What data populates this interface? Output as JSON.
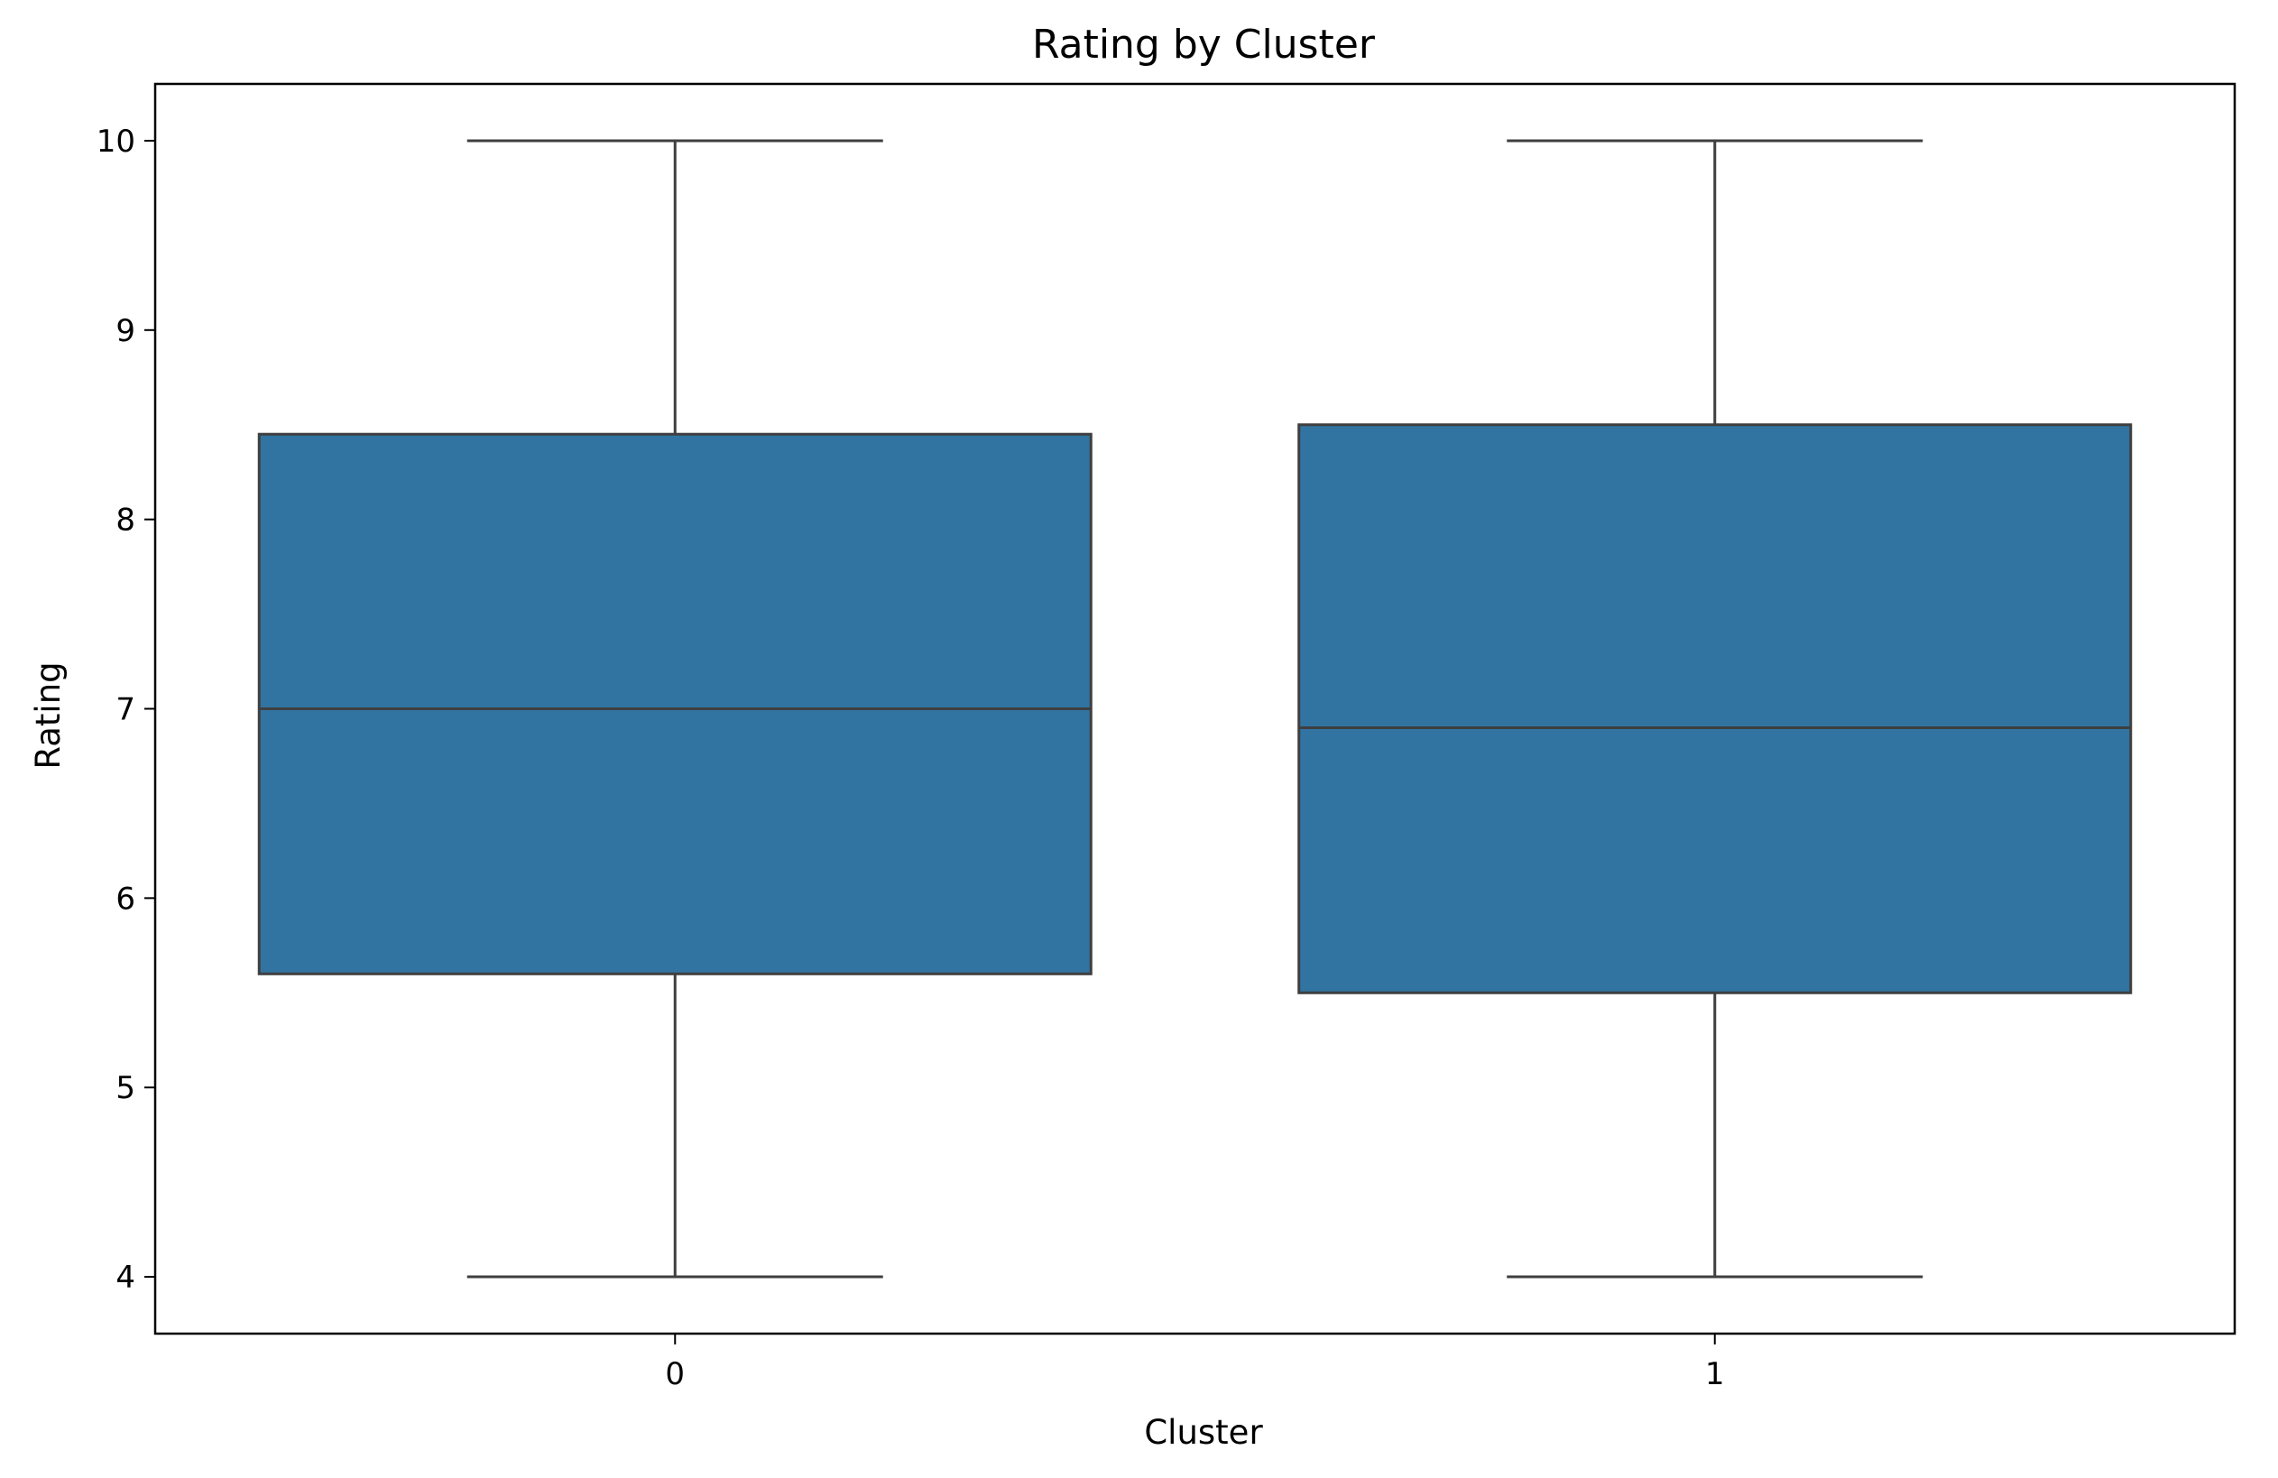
{
  "chart_data": {
    "type": "box",
    "title": "Rating by Cluster",
    "xlabel": "Cluster",
    "ylabel": "Rating",
    "categories": [
      "0",
      "1"
    ],
    "boxes": [
      {
        "category": "0",
        "whisker_low": 4.0,
        "q1": 5.6,
        "median": 7.0,
        "q3": 8.45,
        "whisker_high": 10.0
      },
      {
        "category": "1",
        "whisker_low": 4.0,
        "q1": 5.5,
        "median": 6.9,
        "q3": 8.5,
        "whisker_high": 10.0
      }
    ],
    "ylim": [
      3.7,
      10.3
    ],
    "yticks": [
      "4",
      "5",
      "6",
      "7",
      "8",
      "9",
      "10"
    ],
    "grid": false,
    "box_color": "#3274a1",
    "line_color": "#3f3f3f"
  }
}
